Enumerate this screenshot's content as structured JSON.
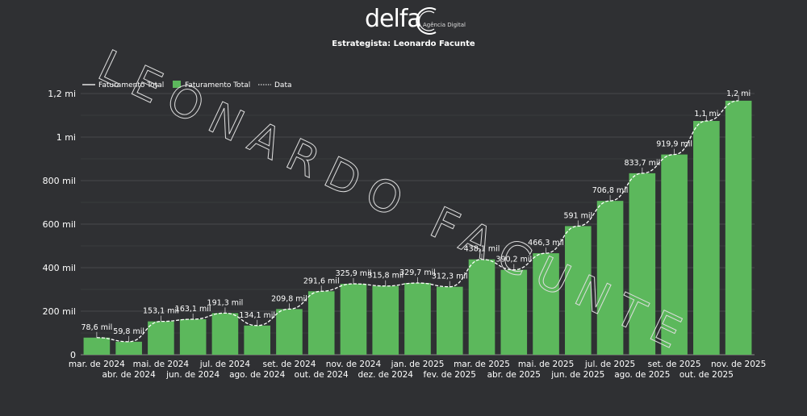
{
  "header": {
    "logo_text": "delfa",
    "logo_subtext": "Agência Digital",
    "strategist": "Estrategista: Leonardo Facunte"
  },
  "watermark": "LEONARDO FACUNTE",
  "chart_data": {
    "type": "bar",
    "categories": [
      "mar. de 2024",
      "abr. de 2024",
      "mai. de 2024",
      "jun. de 2024",
      "jul. de 2024",
      "ago. de 2024",
      "set. de 2024",
      "out. de 2024",
      "nov. de 2024",
      "dez. de 2024",
      "jan. de 2025",
      "fev. de 2025",
      "mar. de 2025",
      "abr. de 2025",
      "mai. de 2025",
      "jun. de 2025",
      "jul. de 2025",
      "ago. de 2025",
      "set. de 2025",
      "out. de 2025",
      "nov. de 2025"
    ],
    "series": [
      {
        "name": "Faturamento Total",
        "values": [
          78600,
          59800,
          153100,
          163100,
          191300,
          134100,
          209800,
          291600,
          325900,
          315800,
          329700,
          312300,
          438100,
          390200,
          466300,
          591000,
          706800,
          833700,
          919900,
          1074000,
          1167000
        ],
        "labels": [
          "78,6 mil",
          "59,8 mil",
          "153,1 mil",
          "163,1 mil",
          "191,3 mil",
          "134,1 mil",
          "209,8 mil",
          "291,6 mil",
          "325,9 mil",
          "315,8 mil",
          "329,7 mil",
          "312,3 mil",
          "438,1 mil",
          "390,2 mil",
          "466,3 mil",
          "591 mil",
          "706,8 mil",
          "833,7 mil",
          "919,9 mil",
          "1,1 mi",
          "1,2 mi"
        ]
      }
    ],
    "legend": [
      {
        "label": "Faturamento Total",
        "kind": "line"
      },
      {
        "label": "Faturamento Total",
        "kind": "bar"
      },
      {
        "label": "Data",
        "kind": "dotted-line"
      }
    ],
    "legend_placement": "top-left",
    "yticks": [
      0,
      200000,
      400000,
      600000,
      800000,
      1000000,
      1200000
    ],
    "ytick_labels": [
      "0",
      "200 mil",
      "400 mil",
      "600 mil",
      "800 mil",
      "1 mi",
      "1,2 mi"
    ],
    "ylim": [
      0,
      1200000
    ],
    "grid": true,
    "colors": {
      "bar": "#5cb85c",
      "line": "#ffffff",
      "background": "#2f3033"
    }
  }
}
